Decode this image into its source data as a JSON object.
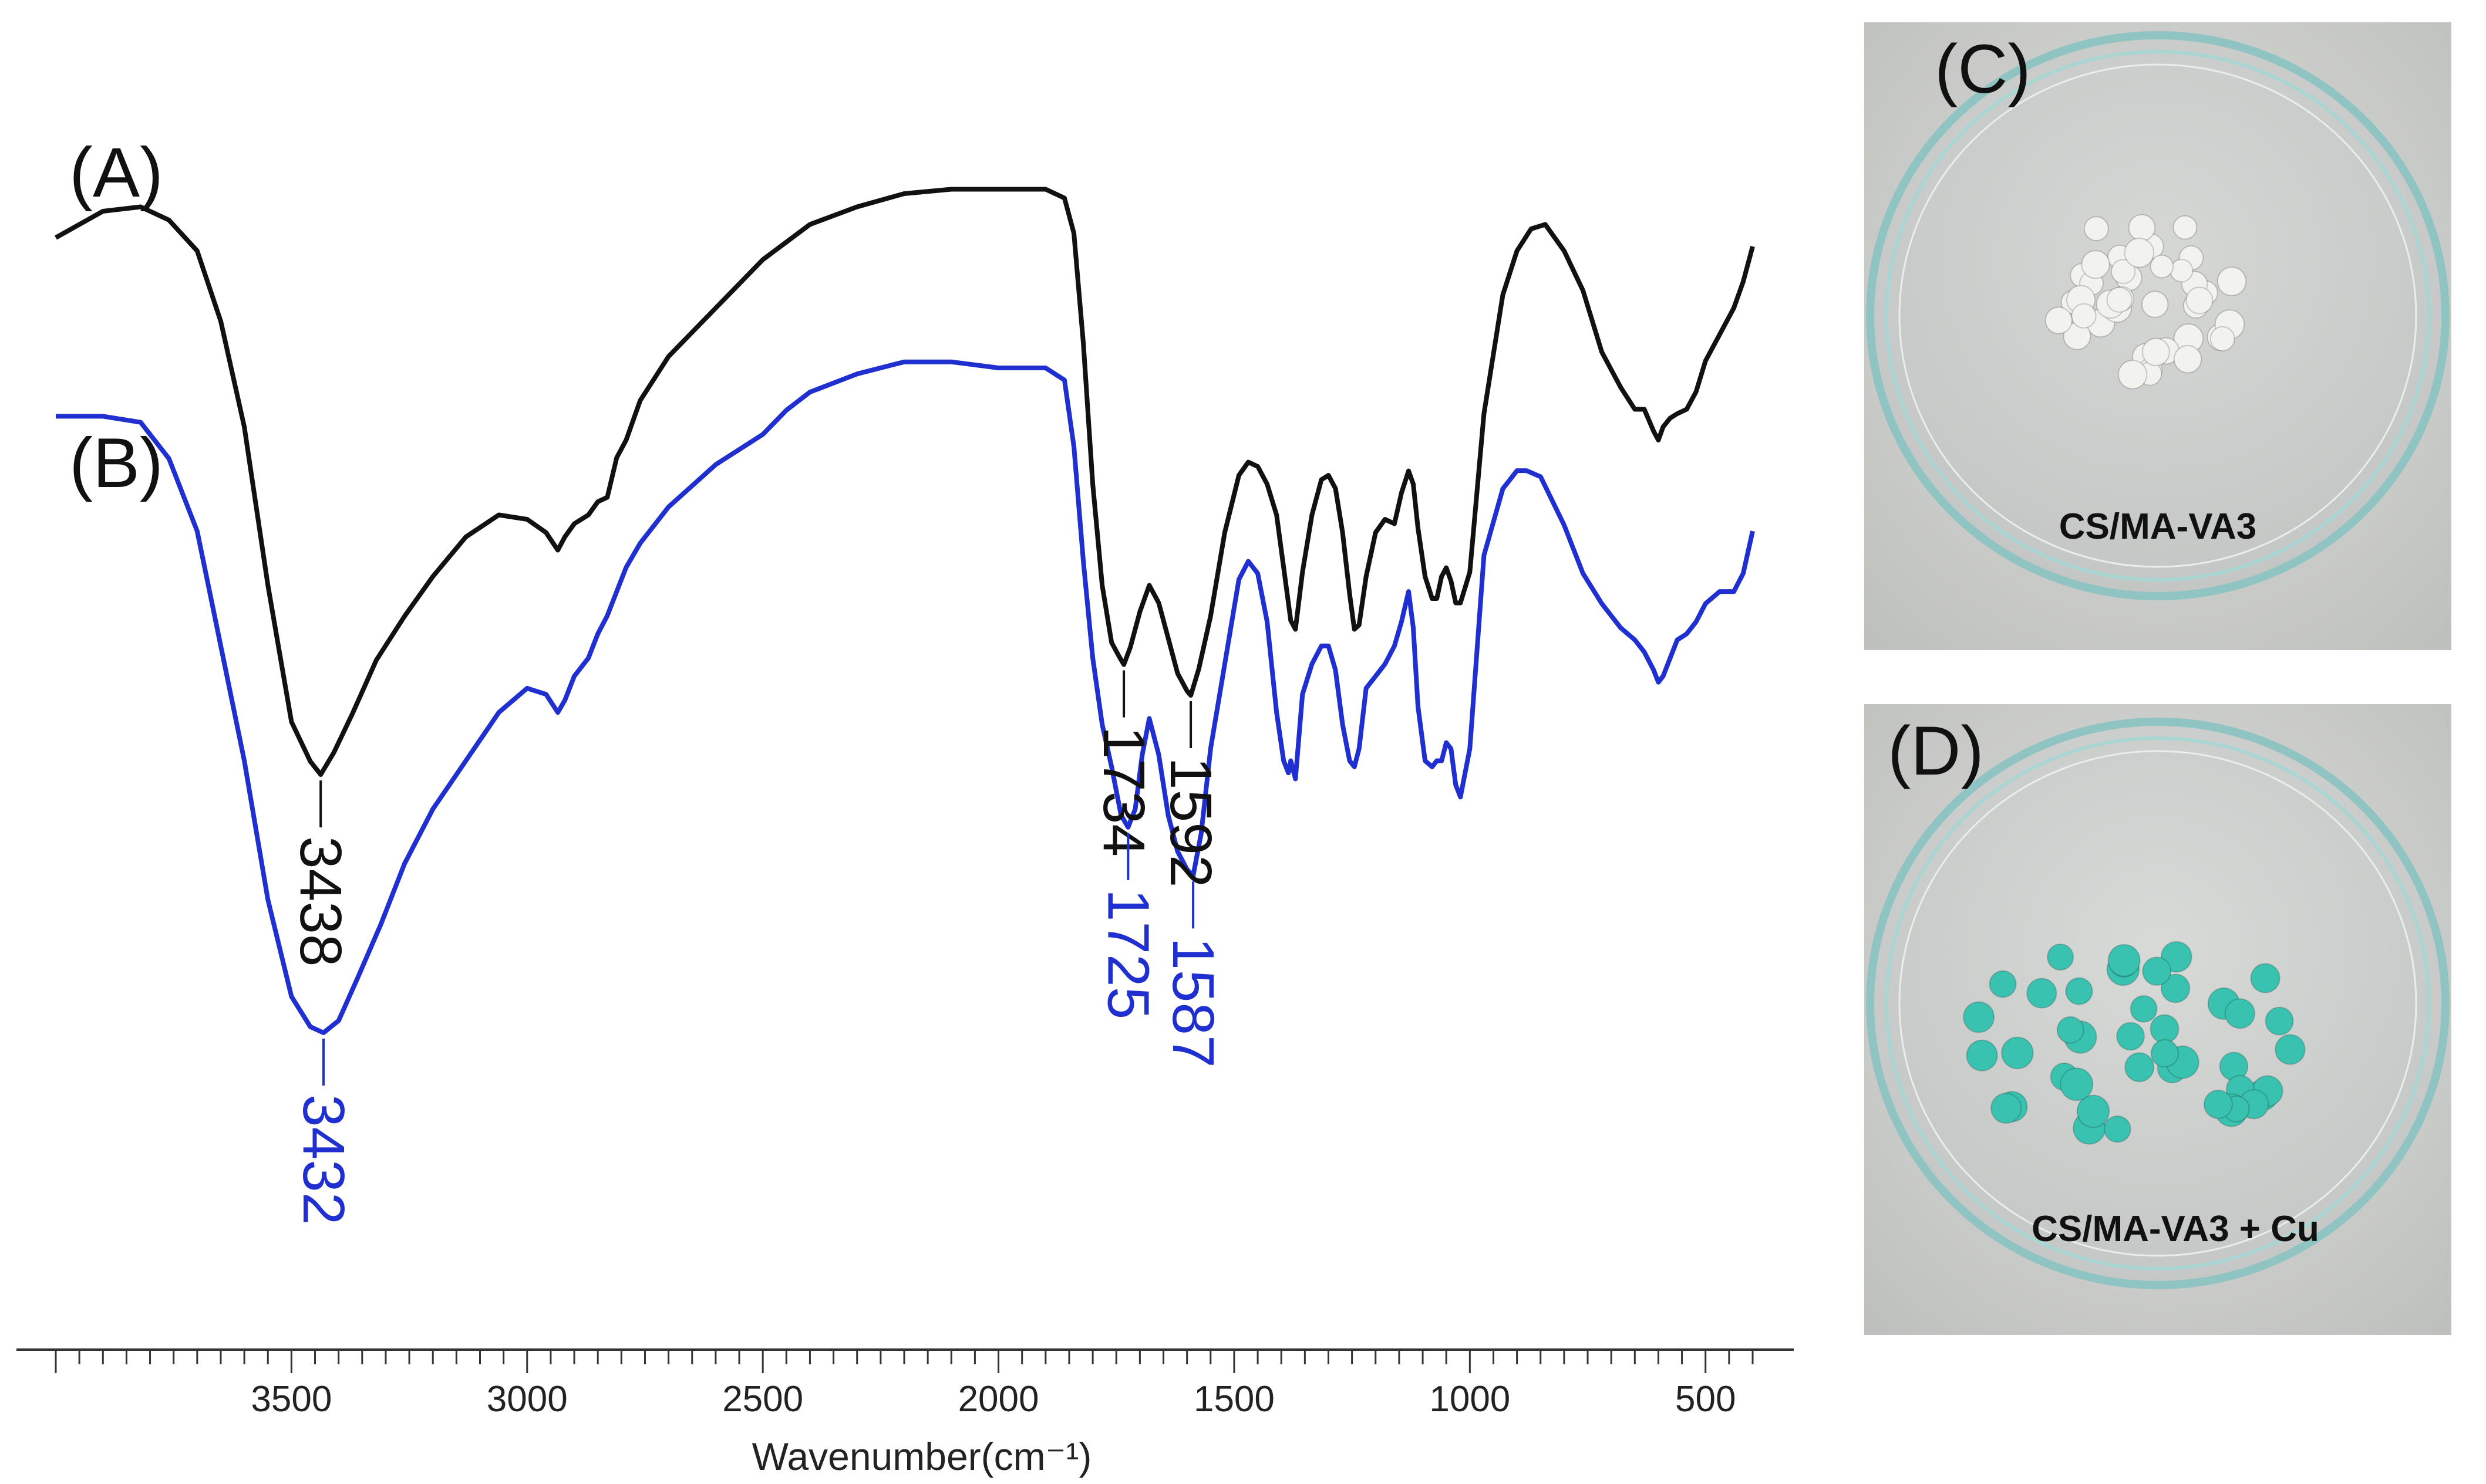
{
  "chart_data": {
    "type": "line",
    "title": "",
    "xlabel": "Wavenumber(cm⁻¹)",
    "ylabel": "",
    "xlim": [
      4000,
      400
    ],
    "x_reversed": true,
    "xticks": [
      3500,
      3000,
      2500,
      2000,
      1500,
      1000,
      500
    ],
    "series": [
      {
        "name": "(A)",
        "color": "#111111",
        "x": [
          4000,
          3900,
          3820,
          3760,
          3700,
          3650,
          3600,
          3550,
          3500,
          3460,
          3438,
          3410,
          3370,
          3320,
          3260,
          3200,
          3130,
          3060,
          3000,
          2960,
          2935,
          2920,
          2900,
          2870,
          2850,
          2830,
          2810,
          2790,
          2760,
          2700,
          2600,
          2500,
          2400,
          2300,
          2200,
          2100,
          2000,
          1900,
          1860,
          1840,
          1820,
          1800,
          1780,
          1760,
          1745,
          1734,
          1720,
          1700,
          1680,
          1660,
          1640,
          1620,
          1600,
          1592,
          1575,
          1550,
          1520,
          1490,
          1470,
          1450,
          1430,
          1410,
          1390,
          1380,
          1370,
          1355,
          1335,
          1315,
          1300,
          1285,
          1270,
          1255,
          1245,
          1235,
          1220,
          1200,
          1180,
          1160,
          1145,
          1130,
          1120,
          1110,
          1095,
          1080,
          1070,
          1060,
          1050,
          1040,
          1030,
          1020,
          1000,
          970,
          930,
          900,
          870,
          840,
          800,
          760,
          720,
          680,
          650,
          630,
          610,
          600,
          590,
          575,
          560,
          540,
          520,
          500,
          470,
          440,
          420,
          400
        ],
        "y": [
          12.2,
          12.8,
          12.9,
          12.6,
          11.9,
          10.3,
          7.9,
          4.3,
          1.2,
          0.3,
          0.0,
          0.5,
          1.4,
          2.6,
          3.6,
          4.5,
          5.4,
          5.9,
          5.8,
          5.5,
          5.1,
          5.4,
          5.7,
          5.9,
          6.2,
          6.3,
          7.2,
          7.6,
          8.5,
          9.5,
          10.6,
          11.7,
          12.5,
          12.9,
          13.2,
          13.3,
          13.3,
          13.3,
          13.1,
          12.3,
          9.8,
          6.6,
          4.3,
          3.0,
          2.7,
          2.5,
          2.9,
          3.7,
          4.3,
          3.9,
          3.1,
          2.3,
          1.9,
          1.8,
          2.4,
          3.6,
          5.5,
          6.8,
          7.1,
          7.0,
          6.6,
          5.9,
          4.3,
          3.5,
          3.3,
          4.6,
          5.9,
          6.7,
          6.8,
          6.5,
          5.5,
          4.1,
          3.3,
          3.4,
          4.5,
          5.5,
          5.8,
          5.7,
          6.4,
          6.9,
          6.6,
          5.6,
          4.5,
          4.0,
          4.0,
          4.5,
          4.7,
          4.4,
          3.9,
          3.9,
          4.6,
          8.2,
          10.9,
          11.9,
          12.4,
          12.5,
          11.9,
          11.0,
          9.6,
          8.8,
          8.3,
          8.3,
          7.8,
          7.6,
          7.9,
          8.1,
          8.2,
          8.3,
          8.7,
          9.4,
          10.0,
          10.6,
          11.2,
          12.0
        ]
      },
      {
        "name": "(B)",
        "color": "#1f2fd0",
        "x": [
          4000,
          3900,
          3820,
          3760,
          3700,
          3650,
          3600,
          3550,
          3500,
          3460,
          3432,
          3400,
          3360,
          3310,
          3260,
          3200,
          3130,
          3060,
          3000,
          2960,
          2935,
          2920,
          2900,
          2870,
          2850,
          2830,
          2810,
          2790,
          2760,
          2700,
          2600,
          2500,
          2450,
          2400,
          2300,
          2200,
          2100,
          2000,
          1900,
          1860,
          1840,
          1820,
          1800,
          1780,
          1760,
          1740,
          1725,
          1710,
          1695,
          1680,
          1660,
          1640,
          1620,
          1600,
          1587,
          1570,
          1550,
          1520,
          1490,
          1470,
          1450,
          1430,
          1410,
          1395,
          1385,
          1380,
          1370,
          1355,
          1335,
          1315,
          1300,
          1285,
          1270,
          1255,
          1245,
          1235,
          1220,
          1200,
          1180,
          1160,
          1145,
          1130,
          1120,
          1110,
          1095,
          1080,
          1070,
          1060,
          1050,
          1040,
          1030,
          1020,
          1000,
          970,
          930,
          900,
          880,
          850,
          800,
          760,
          720,
          680,
          650,
          630,
          610,
          600,
          590,
          575,
          560,
          540,
          520,
          500,
          470,
          440,
          420,
          400
        ],
        "y": [
          10.2,
          10.2,
          10.1,
          9.5,
          8.3,
          6.4,
          4.5,
          2.2,
          0.6,
          0.1,
          0.0,
          0.2,
          0.9,
          1.8,
          2.8,
          3.7,
          4.5,
          5.3,
          5.7,
          5.6,
          5.3,
          5.5,
          5.9,
          6.2,
          6.6,
          6.9,
          7.3,
          7.7,
          8.1,
          8.7,
          9.4,
          9.9,
          10.3,
          10.6,
          10.9,
          11.1,
          11.1,
          11.0,
          11.0,
          10.8,
          9.7,
          7.8,
          6.2,
          5.1,
          4.4,
          3.6,
          3.4,
          3.7,
          4.6,
          5.2,
          4.6,
          3.6,
          3.0,
          2.7,
          2.6,
          3.3,
          4.7,
          6.1,
          7.5,
          7.8,
          7.6,
          6.8,
          5.3,
          4.5,
          4.3,
          4.5,
          4.2,
          5.6,
          6.1,
          6.4,
          6.4,
          6.0,
          5.1,
          4.5,
          4.4,
          4.7,
          5.7,
          5.9,
          6.1,
          6.4,
          6.8,
          7.3,
          6.7,
          5.4,
          4.5,
          4.4,
          4.5,
          4.5,
          4.8,
          4.7,
          4.1,
          3.9,
          4.7,
          7.9,
          9.0,
          9.3,
          9.3,
          9.2,
          8.4,
          7.6,
          7.1,
          6.7,
          6.5,
          6.3,
          6.0,
          5.8,
          5.9,
          6.2,
          6.5,
          6.6,
          6.8,
          7.1,
          7.3,
          7.3,
          7.6,
          8.3
        ]
      }
    ],
    "annotations": [
      {
        "series": "(A)",
        "x": 3438,
        "label": "3438"
      },
      {
        "series": "(A)",
        "x": 1734,
        "label": "1734"
      },
      {
        "series": "(A)",
        "x": 1592,
        "label": "1592"
      },
      {
        "series": "(B)",
        "x": 3432,
        "label": "3432"
      },
      {
        "series": "(B)",
        "x": 1725,
        "label": "1725"
      },
      {
        "series": "(B)",
        "x": 1587,
        "label": "1587"
      }
    ],
    "legend": [
      {
        "label": "(A)",
        "series": "(A)"
      },
      {
        "label": "(B)",
        "series": "(B)"
      }
    ]
  },
  "photos": {
    "c": {
      "panel_label": "(C)",
      "caption": "CS/MA-VA3",
      "bead_color": "#f2f2ef"
    },
    "d": {
      "panel_label": "(D)",
      "caption": "CS/MA-VA3 + Cu",
      "bead_color": "#39c2b0"
    }
  },
  "colors": {
    "black_trace": "#111111",
    "blue_trace": "#1f2fd0"
  }
}
